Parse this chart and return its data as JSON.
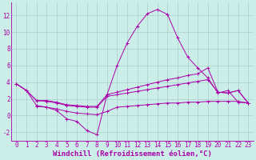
{
  "background_color": "#cceee8",
  "grid_color": "#aacccc",
  "line_color": "#aa00aa",
  "xlabel": "Windchill (Refroidissement éolien,°C)",
  "xlabel_fontsize": 6.5,
  "tick_fontsize": 5.5,
  "xlim": [
    -0.5,
    23.5
  ],
  "ylim": [
    -3.0,
    13.5
  ],
  "yticks": [
    -2,
    0,
    2,
    4,
    6,
    8,
    10,
    12
  ],
  "xticks": [
    0,
    1,
    2,
    3,
    4,
    5,
    6,
    7,
    8,
    9,
    10,
    11,
    12,
    13,
    14,
    15,
    16,
    17,
    18,
    19,
    20,
    21,
    22,
    23
  ],
  "series1_x": [
    0,
    1,
    2,
    3,
    4,
    5,
    6,
    7,
    8,
    9,
    10,
    11,
    12,
    13,
    14,
    15,
    16,
    17,
    18,
    19,
    20,
    21,
    22,
    23
  ],
  "series1_y": [
    3.8,
    3.0,
    1.2,
    1.0,
    0.6,
    -0.4,
    -0.7,
    -1.8,
    -2.3,
    2.5,
    6.0,
    8.7,
    10.7,
    12.2,
    12.7,
    12.1,
    9.3,
    7.0,
    5.7,
    4.5,
    2.7,
    3.0,
    1.6,
    1.5
  ],
  "series2_x": [
    0,
    1,
    2,
    3,
    4,
    5,
    6,
    7,
    8,
    9,
    10,
    11,
    12,
    13,
    14,
    15,
    16,
    17,
    18,
    19,
    20,
    21,
    22,
    23
  ],
  "series2_y": [
    3.8,
    3.0,
    1.8,
    1.8,
    1.6,
    1.3,
    1.2,
    1.1,
    1.1,
    2.5,
    2.8,
    3.1,
    3.4,
    3.7,
    4.0,
    4.3,
    4.5,
    4.8,
    5.0,
    5.7,
    2.8,
    2.7,
    3.0,
    1.5
  ],
  "series3_x": [
    0,
    1,
    2,
    3,
    4,
    5,
    6,
    7,
    8,
    9,
    10,
    11,
    12,
    13,
    14,
    15,
    16,
    17,
    18,
    19,
    20,
    21,
    22,
    23
  ],
  "series3_y": [
    3.8,
    3.0,
    1.8,
    1.7,
    1.5,
    1.2,
    1.1,
    1.0,
    1.0,
    2.3,
    2.5,
    2.7,
    2.9,
    3.1,
    3.3,
    3.5,
    3.7,
    3.9,
    4.1,
    4.3,
    2.8,
    2.7,
    3.0,
    1.5
  ],
  "series4_x": [
    2,
    3,
    4,
    5,
    6,
    7,
    8,
    9,
    10,
    11,
    12,
    13,
    14,
    15,
    16,
    17,
    18,
    19,
    20,
    21,
    22,
    23
  ],
  "series4_y": [
    1.1,
    1.0,
    0.8,
    0.5,
    0.3,
    0.2,
    0.1,
    0.5,
    1.0,
    1.1,
    1.2,
    1.3,
    1.4,
    1.5,
    1.5,
    1.6,
    1.6,
    1.7,
    1.7,
    1.7,
    1.7,
    1.5
  ]
}
